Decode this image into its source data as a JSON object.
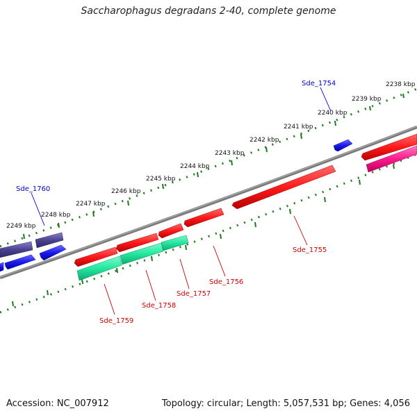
{
  "title": "Saccharophagus degradans 2-40, complete genome",
  "footer": {
    "accession": "Accession: NC_007912",
    "summary": "Topology: circular; Length: 5,057,531 bp; Genes: 4,056"
  },
  "ticks": [
    "2238 kbp",
    "2239 kbp",
    "2240 kbp",
    "2241 kbp",
    "2242 kbp",
    "2243 kbp",
    "2244 kbp",
    "2245 kbp",
    "2246 kbp",
    "2247 kbp",
    "2248 kbp",
    "2249 kbp"
  ],
  "gene_labels": {
    "sde_1754": "Sde_1754",
    "sde_1755": "Sde_1755",
    "sde_1756": "Sde_1756",
    "sde_1757": "Sde_1757",
    "sde_1758": "Sde_1758",
    "sde_1759": "Sde_1759",
    "sde_1760": "Sde_1760"
  },
  "colors": {
    "backbone": "#7a7a7a",
    "tick_marks": "#1a7a1a",
    "red_gene": "#ff1a1a",
    "green_gene": "#22e8a0",
    "purple_gene": "#4b4292",
    "blue_gene": "#1a1aee",
    "pink_gene": "#ff1a8c",
    "label_blue": "#0000cc",
    "label_red": "#cc0000"
  }
}
